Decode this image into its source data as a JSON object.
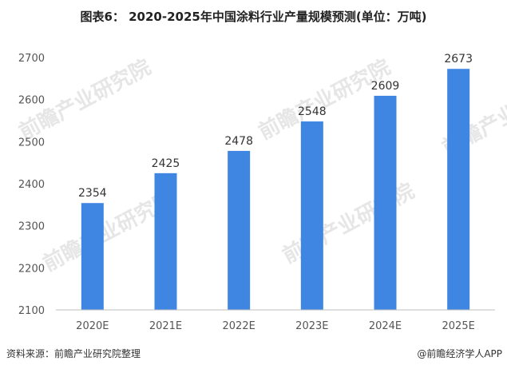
{
  "title": "图表6： 2020-2025年中国涂料行业产量规模预测(单位：万吨)",
  "footer": {
    "source": "资料来源：前瞻产业研究院整理",
    "credit": "@前瞻经济学人APP"
  },
  "watermark": "前瞻产业研究院",
  "colors": {
    "bar": "#3f86e3",
    "axis": "#bfbfbf",
    "grid": "#d9d9d9"
  },
  "chart_data": {
    "type": "bar",
    "title": "2020-2025年中国涂料行业产量规模预测(单位：万吨)",
    "categories": [
      "2020E",
      "2021E",
      "2022E",
      "2023E",
      "2024E",
      "2025E"
    ],
    "values": [
      2354,
      2425,
      2478,
      2548,
      2609,
      2673
    ],
    "ylim": [
      2100,
      2700
    ],
    "yticks": [
      2100,
      2200,
      2300,
      2400,
      2500,
      2600,
      2700
    ],
    "xlabel": "",
    "ylabel": "",
    "grid": false,
    "data_labels": true
  }
}
